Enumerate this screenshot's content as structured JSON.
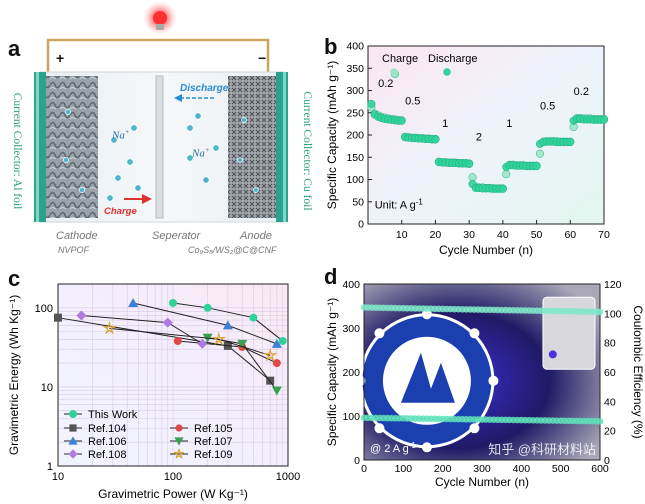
{
  "panel_labels": {
    "a": "a",
    "b": "b",
    "c": "c",
    "d": "d"
  },
  "panel_a": {
    "left_collector": "Current Collector: Al foil",
    "right_collector": "Current Collector: Cu foil",
    "plus": "+",
    "minus": "−",
    "na_ion": "Na",
    "na_sup": "+",
    "discharge_label": "Discharge",
    "charge_label": "Charge",
    "cathode_title": "Cathode",
    "cathode_material": "NVPOF",
    "separator_title": "Seperator",
    "anode_title": "Anode",
    "anode_material": "Co₉S₈/WS₂@C@CNF",
    "colors": {
      "collector": "#2aa28e",
      "wire": "#c9a65a",
      "bulb": "#ff2a2a",
      "label_green": "#2aa277",
      "charge_red": "#e03030",
      "discharge_blue": "#2a8bd0"
    }
  },
  "panel_b": {
    "legend_charge": "Charge",
    "legend_discharge": "Discharge",
    "unit_label": "Unit: A g",
    "unit_sup": "-1",
    "rate_labels": [
      "0.2",
      "0.5",
      "1",
      "2",
      "1",
      "0.5",
      "0.2"
    ]
  },
  "panel_c": {
    "legend_title_this": "This Work"
  },
  "panel_d": {
    "current_label": "@ 2 A g",
    "current_sup": "-1",
    "watermark": "知乎 @科研材料站"
  },
  "chart_data": [
    {
      "id": "b",
      "type": "scatter",
      "title": "",
      "xlabel": "Cycle Number (n)",
      "ylabel": "Specific Capacity (mAh g⁻¹)",
      "xlim": [
        0,
        70
      ],
      "ylim": [
        0,
        400
      ],
      "xticks": [
        10,
        20,
        30,
        40,
        50,
        60,
        70
      ],
      "yticks": [
        0,
        50,
        100,
        150,
        200,
        250,
        300,
        350,
        400
      ],
      "grid": false,
      "series": [
        {
          "name": "Charge",
          "color": "#99e6c7",
          "y": [
            262,
            248,
            244,
            241,
            239,
            237,
            236,
            235,
            234,
            233,
            196,
            195,
            194,
            194,
            193,
            193,
            192,
            192,
            191,
            191,
            140,
            139,
            139,
            138,
            138,
            138,
            137,
            137,
            137,
            136,
            105,
            83,
            82,
            82,
            81,
            81,
            81,
            80,
            80,
            80,
            112,
            133,
            133,
            132,
            132,
            132,
            131,
            131,
            131,
            131,
            158,
            185,
            186,
            186,
            186,
            186,
            185,
            185,
            185,
            185,
            218,
            238,
            238,
            237,
            237,
            237,
            236,
            236,
            236,
            236
          ]
        },
        {
          "name": "Discharge",
          "color": "#2fd39a",
          "y": [
            270,
            246,
            241,
            238,
            236,
            235,
            234,
            233,
            232,
            232,
            195,
            194,
            193,
            193,
            192,
            192,
            191,
            191,
            190,
            190,
            139,
            138,
            138,
            137,
            137,
            137,
            136,
            136,
            136,
            135,
            90,
            81,
            81,
            80,
            80,
            80,
            79,
            79,
            79,
            79,
            128,
            132,
            132,
            131,
            131,
            131,
            130,
            130,
            130,
            130,
            180,
            184,
            185,
            185,
            185,
            184,
            184,
            184,
            184,
            184,
            232,
            236,
            236,
            235,
            235,
            235,
            234,
            234,
            234,
            234
          ]
        }
      ],
      "outliers": [
        {
          "x": 8,
          "y": 337,
          "series": "Charge"
        }
      ]
    },
    {
      "id": "c",
      "type": "line",
      "title": "",
      "xlabel": "Gravimetric Power (W Kg⁻¹)",
      "ylabel": "Gravimetric Energy (Wh Kg⁻¹)",
      "xscale": "log",
      "yscale": "log",
      "xlim": [
        10,
        1000
      ],
      "ylim": [
        1,
        200
      ],
      "xticks": [
        10,
        100,
        1000
      ],
      "yticks": [
        1,
        10,
        100
      ],
      "grid": true,
      "legend_position": "bottom-left",
      "series": [
        {
          "name": "This Work",
          "color": "#2fd39a",
          "marker": "circle",
          "x": [
            100,
            200,
            500,
            900
          ],
          "y": [
            115,
            100,
            75,
            38
          ]
        },
        {
          "name": "Ref.104",
          "color": "#555555",
          "marker": "square",
          "x": [
            10,
            300,
            700
          ],
          "y": [
            75,
            33,
            12
          ]
        },
        {
          "name": "Ref.105",
          "color": "#e04848",
          "marker": "circle",
          "x": [
            110,
            400,
            800
          ],
          "y": [
            38,
            32,
            20
          ]
        },
        {
          "name": "Ref.106",
          "color": "#3a7fd9",
          "marker": "triangle-up",
          "x": [
            45,
            300,
            800
          ],
          "y": [
            115,
            60,
            35
          ]
        },
        {
          "name": "Ref.107",
          "color": "#3aa050",
          "marker": "triangle-down",
          "x": [
            200,
            400,
            800
          ],
          "y": [
            42,
            35,
            9
          ]
        },
        {
          "name": "Ref.108",
          "color": "#b07ae0",
          "marker": "diamond",
          "x": [
            16,
            90,
            180
          ],
          "y": [
            80,
            65,
            35
          ]
        },
        {
          "name": "Ref.109",
          "color": "#d9a22a",
          "marker": "star",
          "x": [
            28,
            250,
            700
          ],
          "y": [
            55,
            40,
            25
          ]
        }
      ]
    },
    {
      "id": "d",
      "type": "scatter",
      "title": "",
      "xlabel": "Cycle Number (n)",
      "ylabel": "Specific Capacity (mAh g⁻¹)",
      "y2label": "Coulombic Efficiency (%)",
      "xlim": [
        0,
        600
      ],
      "ylim": [
        0,
        400
      ],
      "y2lim": [
        0,
        120
      ],
      "xticks": [
        0,
        100,
        200,
        300,
        400,
        500,
        600
      ],
      "yticks": [
        0,
        100,
        200,
        300,
        400
      ],
      "y2ticks": [
        0,
        20,
        40,
        60,
        80,
        100,
        120
      ],
      "series": [
        {
          "name": "Capacity",
          "color": "#5fe0b8",
          "axis": "left",
          "x_start": 0,
          "x_end": 600,
          "y_start": 96,
          "y_end": 88
        },
        {
          "name": "Coulombic Efficiency",
          "color": "#7fe8c8",
          "axis": "right",
          "x_start": 0,
          "x_end": 600,
          "y_start": 104,
          "y_end": 101
        }
      ]
    }
  ]
}
